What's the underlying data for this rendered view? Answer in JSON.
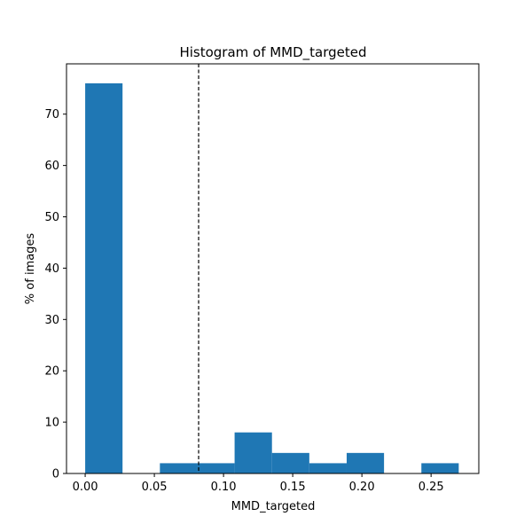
{
  "chart_data": {
    "type": "bar",
    "title": "Histogram of MMD_targeted",
    "xlabel": "MMD_targeted",
    "ylabel": "% of images",
    "xlim": [
      -0.0135,
      0.2845
    ],
    "ylim": [
      0,
      79.8
    ],
    "xticks": [
      0.0,
      0.05,
      0.1,
      0.15,
      0.2,
      0.25
    ],
    "xtick_labels": [
      "0.00",
      "0.05",
      "0.10",
      "0.15",
      "0.20",
      "0.25"
    ],
    "yticks": [
      0,
      10,
      20,
      30,
      40,
      50,
      60,
      70
    ],
    "ytick_labels": [
      "0",
      "10",
      "20",
      "30",
      "40",
      "50",
      "60",
      "70"
    ],
    "bin_edges": [
      0.0,
      0.027,
      0.054,
      0.081,
      0.108,
      0.135,
      0.162,
      0.189,
      0.216,
      0.243,
      0.27
    ],
    "values": [
      76,
      0,
      2,
      2,
      8,
      4,
      2,
      4,
      0,
      2
    ],
    "bar_color": "#1f77b4",
    "reference_line": {
      "x": 0.082,
      "style": "dashed",
      "color": "#000000"
    },
    "grid": false,
    "legend": "none"
  }
}
